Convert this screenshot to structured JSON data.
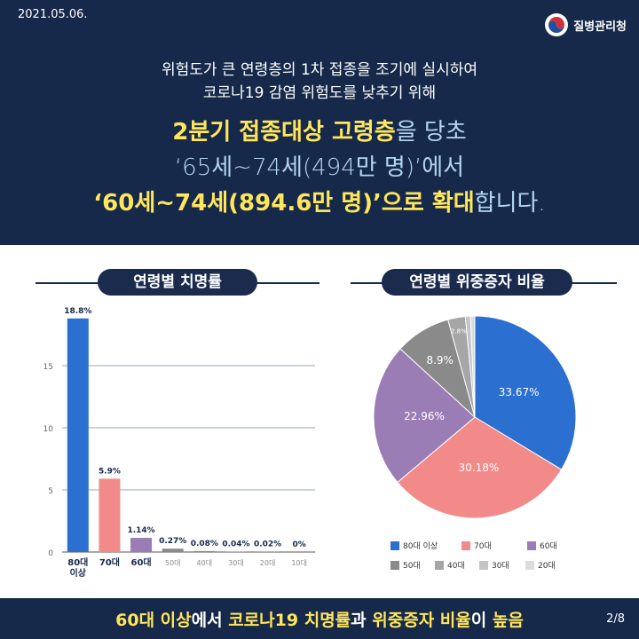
{
  "header": {
    "date": "2021.05.06.",
    "logo_text": "질병관리청",
    "sub_line1": "위험도가 큰 연령층의 1차 접종을 조기에 실시하여",
    "sub_line2": "코로나19 감염 위험도를 낮추기 위해",
    "h1_bold": "2분기 접종대상 고령층",
    "h1_rest": "을 당초",
    "h2": "‘65세~74세(494만 명)’에서",
    "h3_bold": "‘60세~74세(894.6만 명)’으로 확대",
    "h3_rest": "합니다."
  },
  "colors": {
    "navy": "#16294a",
    "yellow": "#ffe65c",
    "bar_80": "#2b6fd0",
    "bar_70": "#f28a8a",
    "bar_60": "#9b7db6",
    "gray": "#8a8a8a"
  },
  "chart_data": [
    {
      "type": "bar",
      "title": "연령별 치명률",
      "categories": [
        "80대 이상",
        "70대",
        "60대",
        "50대",
        "40대",
        "30대",
        "20대",
        "10대"
      ],
      "values": [
        18.8,
        5.9,
        1.14,
        0.27,
        0.08,
        0.04,
        0.02,
        0
      ],
      "value_labels": [
        "18.8%",
        "5.9%",
        "1.14%",
        "0.27%",
        "0.08%",
        "0.04%",
        "0.02%",
        "0%"
      ],
      "colors": [
        "#2b6fd0",
        "#f28a8a",
        "#9b7db6",
        "#8a8a8a",
        "#8a8a8a",
        "#8a8a8a",
        "#8a8a8a",
        "#8a8a8a"
      ],
      "yticks": [
        0,
        5,
        10,
        15
      ],
      "ylim": [
        0,
        20
      ],
      "grid": true
    },
    {
      "type": "pie",
      "title": "연령별 위중증자 비율",
      "labels": [
        "80대 이상",
        "70대",
        "60대",
        "50대",
        "40대",
        "30대",
        "20대"
      ],
      "values": [
        33.67,
        30.18,
        22.96,
        8.9,
        2.8,
        0.8,
        0.69
      ],
      "value_labels": [
        "33.67%",
        "30.18%",
        "22.96%",
        "8.9%",
        "2.8%",
        "",
        ""
      ],
      "colors": [
        "#2b6fd0",
        "#f28a8a",
        "#9b7db6",
        "#8a8a8a",
        "#a6a6a6",
        "#c4c4c4",
        "#dcdcdc"
      ],
      "legend": "bottom"
    }
  ],
  "footer": {
    "part1": "60대 이상",
    "part2": "에서 ",
    "part3": "코로나19 치명률",
    "part4": "과 ",
    "part5": "위중증자 비율",
    "part6": "이 ",
    "part7": "높음",
    "page": "2/8"
  }
}
